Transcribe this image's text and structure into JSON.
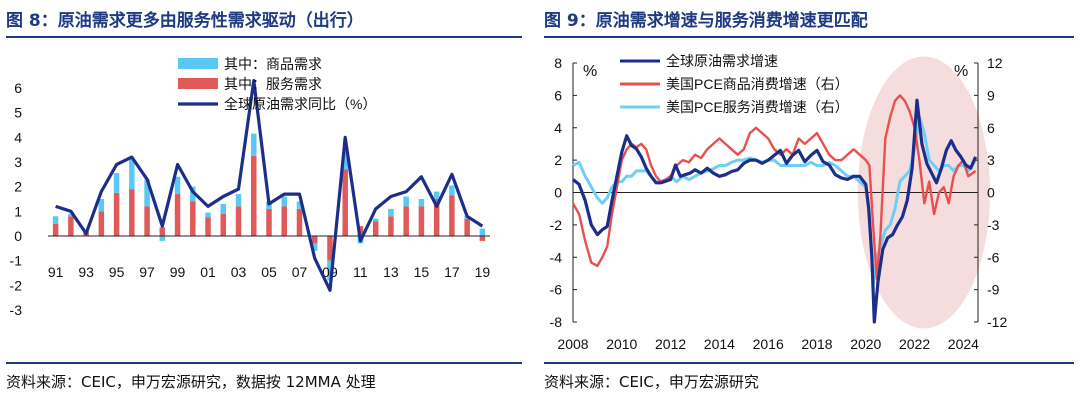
{
  "colors": {
    "title": "#1f3a80",
    "goods": "#5ac8f5",
    "services": "#e05a5a",
    "global": "#1b2f8a",
    "us_goods": "#e8504f",
    "us_services": "#6ecff6",
    "highlight": "#f3d4d4"
  },
  "charts": [
    {
      "title": "图 8：原油需求更多由服务性需求驱动（出行）",
      "source": "资料来源：CEIC，申万宏源研究，数据按 12MMA 处理",
      "chart_data": {
        "type": "bar",
        "stacked": true,
        "legend_position": "top-left",
        "grid": false,
        "categories": [
          "91",
          "92",
          "93",
          "94",
          "95",
          "96",
          "97",
          "98",
          "99",
          "00",
          "01",
          "02",
          "03",
          "04",
          "05",
          "06",
          "07",
          "08",
          "09",
          "10",
          "11",
          "12",
          "13",
          "14",
          "15",
          "16",
          "17",
          "18",
          "19"
        ],
        "x_tick_labels": [
          "91",
          "93",
          "95",
          "97",
          "99",
          "01",
          "03",
          "05",
          "07",
          "09",
          "11",
          "13",
          "15",
          "17",
          "19"
        ],
        "y_ticks": [
          -3,
          -2,
          -1,
          0,
          1,
          2,
          3,
          4,
          5,
          6
        ],
        "ylim": [
          -3,
          6
        ],
        "series": [
          {
            "name": "其中：商品需求",
            "kind": "bar",
            "values": [
              0.3,
              0.1,
              0.0,
              0.5,
              0.8,
              1.2,
              1.1,
              -0.2,
              0.7,
              0.6,
              0.2,
              0.4,
              0.5,
              0.9,
              0.3,
              0.4,
              0.3,
              -0.3,
              -0.8,
              0.7,
              -0.3,
              0.1,
              0.3,
              0.4,
              0.3,
              0.3,
              0.4,
              0.1,
              0.3
            ]
          },
          {
            "name": "其中：服务需求",
            "kind": "bar",
            "values": [
              0.5,
              0.8,
              0.2,
              1.0,
              1.75,
              1.9,
              1.2,
              0.35,
              1.7,
              1.4,
              0.75,
              0.9,
              1.2,
              3.25,
              1.1,
              1.2,
              1.1,
              -0.3,
              -1.0,
              2.7,
              0.4,
              0.6,
              0.8,
              1.2,
              1.2,
              1.5,
              1.65,
              0.7,
              -0.2
            ]
          },
          {
            "name": "全球原油需求同比（%）",
            "kind": "line",
            "values": [
              1.2,
              1.0,
              0.1,
              1.8,
              2.9,
              3.2,
              2.3,
              0.4,
              2.9,
              1.8,
              1.2,
              1.6,
              1.9,
              6.3,
              1.3,
              1.7,
              1.7,
              -0.9,
              -2.2,
              4.0,
              -0.2,
              1.1,
              1.6,
              1.8,
              2.4,
              1.2,
              2.5,
              0.8,
              0.4
            ]
          }
        ]
      }
    },
    {
      "title": "图 9：原油需求增速与服务消费增速更匹配",
      "source": "资料来源：CEIC，申万宏源研究",
      "chart_data": {
        "type": "line",
        "legend_position": "top-left",
        "grid": false,
        "x_ticks": [
          "2008",
          "2010",
          "2012",
          "2014",
          "2016",
          "2018",
          "2020",
          "2022",
          "2024"
        ],
        "xlim": [
          2008,
          2024.6
        ],
        "ylim_left": [
          -8,
          8
        ],
        "ylim_right": [
          -12,
          12
        ],
        "y_ticks_left": [
          -8,
          -6,
          -4,
          -2,
          0,
          2,
          4,
          6,
          8
        ],
        "y_ticks_right": [
          -12,
          -9,
          -6,
          -3,
          0,
          3,
          6,
          9,
          12
        ],
        "y_unit_left": "%",
        "y_unit_right": "%",
        "series": [
          {
            "name": "全球原油需求增速",
            "axis": "left",
            "x": [
              2008,
              2008.25,
              2008.5,
              2008.75,
              2009,
              2009.2,
              2009.4,
              2009.6,
              2009.8,
              2010,
              2010.2,
              2010.4,
              2010.6,
              2010.8,
              2011,
              2011.2,
              2011.4,
              2011.6,
              2011.8,
              2012,
              2012.2,
              2012.4,
              2012.6,
              2012.8,
              2013,
              2013.25,
              2013.5,
              2013.75,
              2014,
              2014.25,
              2014.5,
              2014.75,
              2015,
              2015.25,
              2015.5,
              2015.75,
              2016,
              2016.25,
              2016.5,
              2016.75,
              2017,
              2017.25,
              2017.5,
              2017.75,
              2018,
              2018.25,
              2018.5,
              2018.75,
              2019,
              2019.25,
              2019.5,
              2019.75,
              2020,
              2020.12,
              2020.25,
              2020.35,
              2020.5,
              2020.7,
              2020.9,
              2021.1,
              2021.3,
              2021.5,
              2021.7,
              2021.9,
              2022.1,
              2022.3,
              2022.5,
              2022.7,
              2022.9,
              2023.1,
              2023.3,
              2023.5,
              2023.7,
              2023.9,
              2024.1,
              2024.3,
              2024.5
            ],
            "y": [
              0.8,
              0.5,
              -0.5,
              -2.0,
              -2.6,
              -2.3,
              -2.1,
              -0.5,
              1.0,
              2.5,
              3.5,
              2.9,
              2.7,
              2.2,
              1.5,
              1.0,
              0.6,
              0.6,
              0.7,
              0.8,
              1.7,
              1.0,
              1.1,
              1.2,
              1.4,
              1.2,
              1.5,
              1.2,
              1.0,
              1.1,
              1.3,
              1.4,
              1.8,
              2.0,
              2.0,
              1.8,
              2.0,
              2.3,
              2.6,
              1.8,
              2.3,
              2.6,
              1.9,
              2.3,
              2.6,
              1.9,
              1.7,
              1.1,
              0.9,
              0.8,
              1.0,
              1.0,
              0.5,
              -1.0,
              -4.0,
              -8.0,
              -5.5,
              -3.5,
              -2.8,
              -2.6,
              -2.0,
              -1.5,
              -0.5,
              1.5,
              5.7,
              3.0,
              1.8,
              1.2,
              0.6,
              1.5,
              2.6,
              3.2,
              2.6,
              2.2,
              1.7,
              1.5,
              2.2
            ]
          },
          {
            "name": "美国PCE商品消费增速（右）",
            "axis": "right",
            "x": [
              2008,
              2008.25,
              2008.5,
              2008.75,
              2009,
              2009.2,
              2009.4,
              2009.6,
              2009.8,
              2010,
              2010.2,
              2010.4,
              2010.6,
              2010.8,
              2011,
              2011.2,
              2011.4,
              2011.6,
              2011.8,
              2012,
              2012.25,
              2012.5,
              2012.75,
              2013,
              2013.25,
              2013.5,
              2013.75,
              2014,
              2014.25,
              2014.5,
              2014.75,
              2015,
              2015.25,
              2015.5,
              2015.75,
              2016,
              2016.25,
              2016.5,
              2016.75,
              2017,
              2017.25,
              2017.5,
              2017.75,
              2018,
              2018.25,
              2018.5,
              2018.75,
              2019,
              2019.25,
              2019.5,
              2019.75,
              2020,
              2020.15,
              2020.3,
              2020.45,
              2020.6,
              2020.8,
              2021,
              2021.2,
              2021.4,
              2021.6,
              2021.8,
              2022,
              2022.2,
              2022.4,
              2022.6,
              2022.8,
              2023,
              2023.2,
              2023.4,
              2023.6,
              2023.8,
              2024,
              2024.2,
              2024.5
            ],
            "y": [
              -1.0,
              -2.0,
              -4.5,
              -6.5,
              -6.8,
              -6.0,
              -5.0,
              -2.0,
              0.5,
              3.0,
              4.0,
              4.5,
              4.2,
              4.5,
              4.0,
              2.5,
              1.5,
              1.0,
              1.2,
              1.5,
              2.5,
              3.0,
              2.8,
              3.5,
              3.2,
              4.0,
              4.5,
              5.0,
              4.5,
              4.0,
              3.5,
              4.0,
              5.5,
              6.0,
              5.5,
              5.0,
              4.0,
              3.5,
              4.0,
              3.5,
              5.0,
              4.5,
              5.0,
              5.5,
              4.5,
              3.5,
              3.0,
              3.0,
              3.5,
              4.0,
              3.5,
              3.0,
              2.5,
              -3.0,
              -8.0,
              -4.0,
              5.0,
              7.0,
              8.5,
              9.0,
              8.5,
              7.5,
              6.0,
              3.0,
              -1.0,
              1.0,
              -2.0,
              0.0,
              0.5,
              -1.0,
              1.5,
              2.5,
              3.0,
              1.5,
              2.0
            ]
          },
          {
            "name": "美国PCE服务消费增速（右）",
            "axis": "right",
            "x": [
              2008,
              2008.25,
              2008.5,
              2008.75,
              2009,
              2009.2,
              2009.4,
              2009.6,
              2009.8,
              2010,
              2010.2,
              2010.4,
              2010.6,
              2010.8,
              2011,
              2011.2,
              2011.4,
              2011.6,
              2011.8,
              2012,
              2012.25,
              2012.5,
              2012.75,
              2013,
              2013.25,
              2013.5,
              2013.75,
              2014,
              2014.25,
              2014.5,
              2014.75,
              2015,
              2015.25,
              2015.5,
              2015.75,
              2016,
              2016.25,
              2016.5,
              2016.75,
              2017,
              2017.25,
              2017.5,
              2017.75,
              2018,
              2018.25,
              2018.5,
              2018.75,
              2019,
              2019.25,
              2019.5,
              2019.75,
              2020,
              2020.15,
              2020.3,
              2020.45,
              2020.6,
              2020.8,
              2021,
              2021.2,
              2021.4,
              2021.6,
              2021.8,
              2022,
              2022.2,
              2022.4,
              2022.6,
              2022.8,
              2023,
              2023.2,
              2023.4,
              2023.6,
              2023.8,
              2024,
              2024.2,
              2024.5
            ],
            "y": [
              2.5,
              2.8,
              1.5,
              0.5,
              -0.5,
              -1.0,
              -0.5,
              0.5,
              1.0,
              1.0,
              1.5,
              1.5,
              2.0,
              2.0,
              2.0,
              1.5,
              1.0,
              1.0,
              1.2,
              1.5,
              1.0,
              1.5,
              1.2,
              1.5,
              1.8,
              2.0,
              2.2,
              2.5,
              2.5,
              2.8,
              3.0,
              3.0,
              3.2,
              3.0,
              2.8,
              3.0,
              3.0,
              2.5,
              2.5,
              2.5,
              2.5,
              2.5,
              2.8,
              2.5,
              2.5,
              2.8,
              2.5,
              2.0,
              1.5,
              1.5,
              1.0,
              0.5,
              -2.0,
              -8.5,
              -6.0,
              -5.0,
              -3.5,
              -3.0,
              -1.5,
              1.0,
              1.5,
              2.0,
              4.0,
              7.0,
              5.5,
              3.0,
              2.5,
              2.0,
              2.5,
              2.5,
              2.0,
              2.5,
              2.5,
              2.0,
              3.0
            ]
          }
        ],
        "annotations": [
          {
            "type": "ellipse",
            "x_range": [
              2020,
              2024.6
            ],
            "y_range": [
              -8.4,
              8.4
            ]
          }
        ]
      }
    }
  ]
}
